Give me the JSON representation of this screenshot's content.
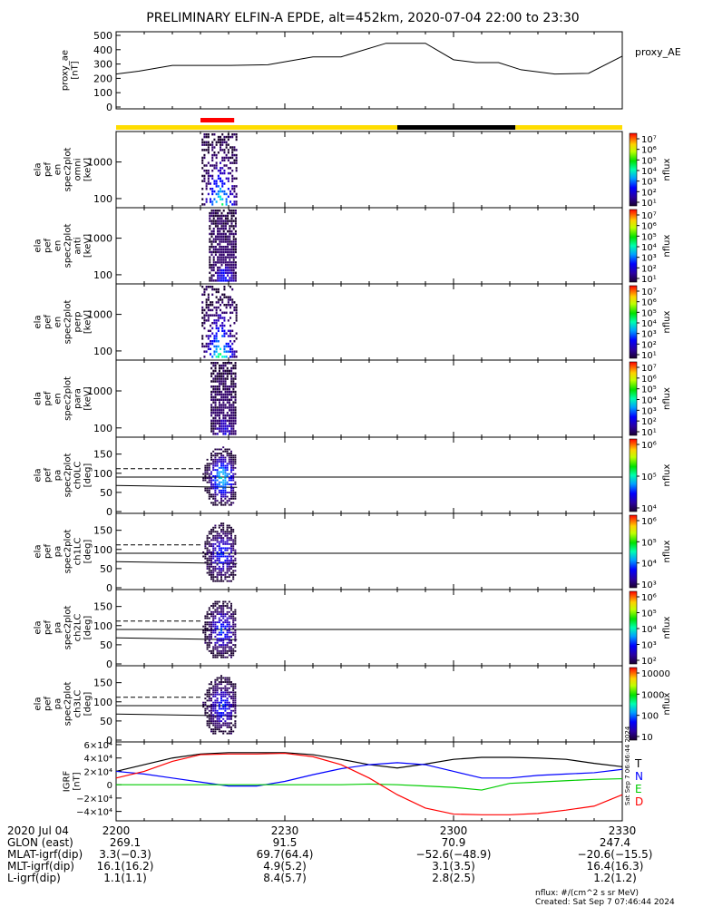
{
  "title": "PRELIMINARY ELFIN-A EPDE, alt=452km, 2020-07-04 22:00 to 23:30",
  "chart_data": [
    {
      "type": "line",
      "label": "proxy_AE",
      "ylabel_lines": [
        "proxy_ae",
        "[nT]"
      ],
      "yticks": [
        "500",
        "400",
        "300",
        "200",
        "100",
        "0"
      ],
      "ylim": [
        0,
        500
      ],
      "x_minutes": [
        0,
        4,
        10,
        20,
        27,
        35,
        40,
        48,
        55,
        60,
        64,
        68,
        72,
        78,
        84,
        90
      ],
      "values": [
        230,
        250,
        290,
        290,
        295,
        350,
        350,
        445,
        445,
        330,
        310,
        310,
        260,
        230,
        235,
        355
      ]
    },
    {
      "type": "bar",
      "segments": [
        {
          "from": 0,
          "to": 50,
          "color": "#ffdd00"
        },
        {
          "from": 50,
          "to": 71,
          "color": "#000000"
        },
        {
          "from": 71,
          "to": 90,
          "color": "#ffdd00"
        }
      ],
      "marker": {
        "from": 15,
        "to": 21,
        "color": "#ff0000"
      }
    },
    {
      "type": "heatmap",
      "ylabel_lines": [
        "ela",
        "pef",
        "en",
        "spec2plot",
        "omni",
        "[keV]"
      ],
      "ytick_labels": [
        "1000",
        "100"
      ],
      "cbar_labels": [
        "10⁷",
        "10⁶",
        "10⁵",
        "10⁴",
        "10³",
        "10²",
        "10¹"
      ],
      "cbar_title": "nflux",
      "x_range_min": [
        15.2,
        21.5
      ],
      "intensity": "strong"
    },
    {
      "type": "heatmap",
      "ylabel_lines": [
        "ela",
        "pef",
        "en",
        "spec2plot",
        "anti",
        "[keV]"
      ],
      "ytick_labels": [
        "1000",
        "100"
      ],
      "cbar_labels": [
        "10⁷",
        "10⁶",
        "10⁵",
        "10⁴",
        "10³",
        "10²",
        "10¹"
      ],
      "cbar_title": "nflux",
      "x_range_min": [
        16.5,
        21.5
      ],
      "intensity": "weak"
    },
    {
      "type": "heatmap",
      "ylabel_lines": [
        "ela",
        "pef",
        "en",
        "spec2plot",
        "perp",
        "[keV]"
      ],
      "ytick_labels": [
        "1000",
        "100"
      ],
      "cbar_labels": [
        "10⁷",
        "10⁶",
        "10⁵",
        "10⁴",
        "10³",
        "10²",
        "10¹"
      ],
      "cbar_title": "nflux",
      "x_range_min": [
        15.2,
        21.5
      ],
      "intensity": "strong"
    },
    {
      "type": "heatmap",
      "ylabel_lines": [
        "ela",
        "pef",
        "en",
        "spec2plot",
        "para",
        "[keV]"
      ],
      "ytick_labels": [
        "1000",
        "100"
      ],
      "cbar_labels": [
        "10⁷",
        "10⁶",
        "10⁵",
        "10⁴",
        "10³",
        "10²",
        "10¹"
      ],
      "cbar_title": "nflux",
      "x_range_min": [
        16.8,
        21.5
      ],
      "intensity": "faint"
    },
    {
      "type": "heatmap",
      "ylabel_lines": [
        "ela",
        "pef",
        "pa",
        "spec2plot",
        "ch0LC",
        "[deg]"
      ],
      "yticks": [
        "150",
        "100",
        "50",
        "0"
      ],
      "ylim": [
        0,
        180
      ],
      "cbar_labels": [
        "10⁶",
        "10⁵",
        "10⁴"
      ],
      "cbar_title": "nflux",
      "x_range_min": [
        15,
        21.5
      ],
      "loss_cone_deg": 68,
      "anti_loss_cone_deg": 112,
      "ninety_deg": 90
    },
    {
      "type": "heatmap",
      "ylabel_lines": [
        "ela",
        "pef",
        "pa",
        "spec2plot",
        "ch1LC",
        "[deg]"
      ],
      "yticks": [
        "150",
        "100",
        "50",
        "0"
      ],
      "ylim": [
        0,
        180
      ],
      "cbar_labels": [
        "10⁶",
        "10⁵",
        "10⁴",
        "10³"
      ],
      "cbar_title": "nflux",
      "x_range_min": [
        15,
        21.5
      ],
      "loss_cone_deg": 68,
      "anti_loss_cone_deg": 112,
      "ninety_deg": 90
    },
    {
      "type": "heatmap",
      "ylabel_lines": [
        "ela",
        "pef",
        "pa",
        "spec2plot",
        "ch2LC",
        "[deg]"
      ],
      "yticks": [
        "150",
        "100",
        "50",
        "0"
      ],
      "ylim": [
        0,
        180
      ],
      "cbar_labels": [
        "10⁶",
        "10⁵",
        "10⁴",
        "10³",
        "10²"
      ],
      "cbar_title": "nflux",
      "x_range_min": [
        15,
        21.5
      ],
      "loss_cone_deg": 68,
      "anti_loss_cone_deg": 112,
      "ninety_deg": 90
    },
    {
      "type": "heatmap",
      "ylabel_lines": [
        "ela",
        "pef",
        "pa",
        "spec2plot",
        "ch3LC",
        "[deg]"
      ],
      "yticks": [
        "150",
        "100",
        "50",
        "0"
      ],
      "ylim": [
        0,
        180
      ],
      "cbar_labels": [
        "10000",
        "1000",
        "100",
        "10"
      ],
      "cbar_title": "nflux",
      "x_range_min": [
        15,
        21.5
      ],
      "loss_cone_deg": 68,
      "anti_loss_cone_deg": 112,
      "ninety_deg": 90
    },
    {
      "type": "line",
      "ylabel_lines": [
        "IGRF",
        "[nT]"
      ],
      "ytick_labels": [
        "6×10⁴",
        "4×10⁴",
        "2×10⁴",
        "0",
        "−2×10⁴",
        "−4×10⁴"
      ],
      "ylim": [
        -50000,
        60000
      ],
      "x_minutes": [
        0,
        5,
        10,
        15,
        20,
        25,
        30,
        35,
        40,
        45,
        50,
        55,
        60,
        65,
        70,
        75,
        80,
        85,
        90
      ],
      "series": [
        {
          "name": "T",
          "color": "#000000",
          "values": [
            20000,
            30000,
            40000,
            46000,
            48000,
            48000,
            48000,
            45000,
            38000,
            30000,
            25000,
            31000,
            38000,
            41000,
            41000,
            40000,
            38000,
            32000,
            27000
          ]
        },
        {
          "name": "N",
          "color": "#0000ff",
          "values": [
            20000,
            16000,
            10000,
            4000,
            -2000,
            -2000,
            5000,
            15000,
            24000,
            30000,
            33000,
            30000,
            20000,
            10000,
            10000,
            14000,
            16000,
            18000,
            23000
          ]
        },
        {
          "name": "E",
          "color": "#00cc00",
          "values": [
            0,
            0,
            0,
            0,
            0,
            0,
            0,
            0,
            0,
            1000,
            0,
            -2000,
            -4000,
            -8000,
            2000,
            4000,
            6000,
            8000,
            9000
          ]
        },
        {
          "name": "D",
          "color": "#ff0000",
          "values": [
            10000,
            20000,
            35000,
            45000,
            46000,
            46000,
            47000,
            42000,
            30000,
            10000,
            -15000,
            -35000,
            -44000,
            -45000,
            -45000,
            -43000,
            -38000,
            -32000,
            -15000
          ]
        }
      ]
    }
  ],
  "time_axis": {
    "tick_labels": [
      "2200",
      "2230",
      "2300",
      "2330"
    ],
    "tick_minutes": [
      0,
      30,
      60,
      90
    ]
  },
  "ephemeris": {
    "rows": [
      {
        "label": "2020 Jul 04",
        "values": [
          "",
          "",
          "",
          ""
        ]
      },
      {
        "label": "GLON (east)",
        "values": [
          "269.1",
          "91.5",
          "70.9",
          "247.4"
        ]
      },
      {
        "label": "MLAT-igrf(dip)",
        "values": [
          "3.3(−0.3)",
          "69.7(64.4)",
          "−52.6(−48.9)",
          "−20.6(−15.5)"
        ]
      },
      {
        "label": "MLT-igrf(dip)",
        "values": [
          "16.1(16.2)",
          "4.9(5.2)",
          "3.1(3.5)",
          "16.4(16.3)"
        ]
      },
      {
        "label": "L-igrf(dip)",
        "values": [
          "1.1(1.1)",
          "8.4(5.7)",
          "2.8(2.5)",
          "1.2(1.2)"
        ]
      }
    ]
  },
  "footer": {
    "units": "nflux: #/(cm^2 s sr MeV)",
    "created": "Created: Sat Sep  7 07:46:44 2024",
    "side_stamp": "Sat Sep  7 06:46:44 2024"
  }
}
